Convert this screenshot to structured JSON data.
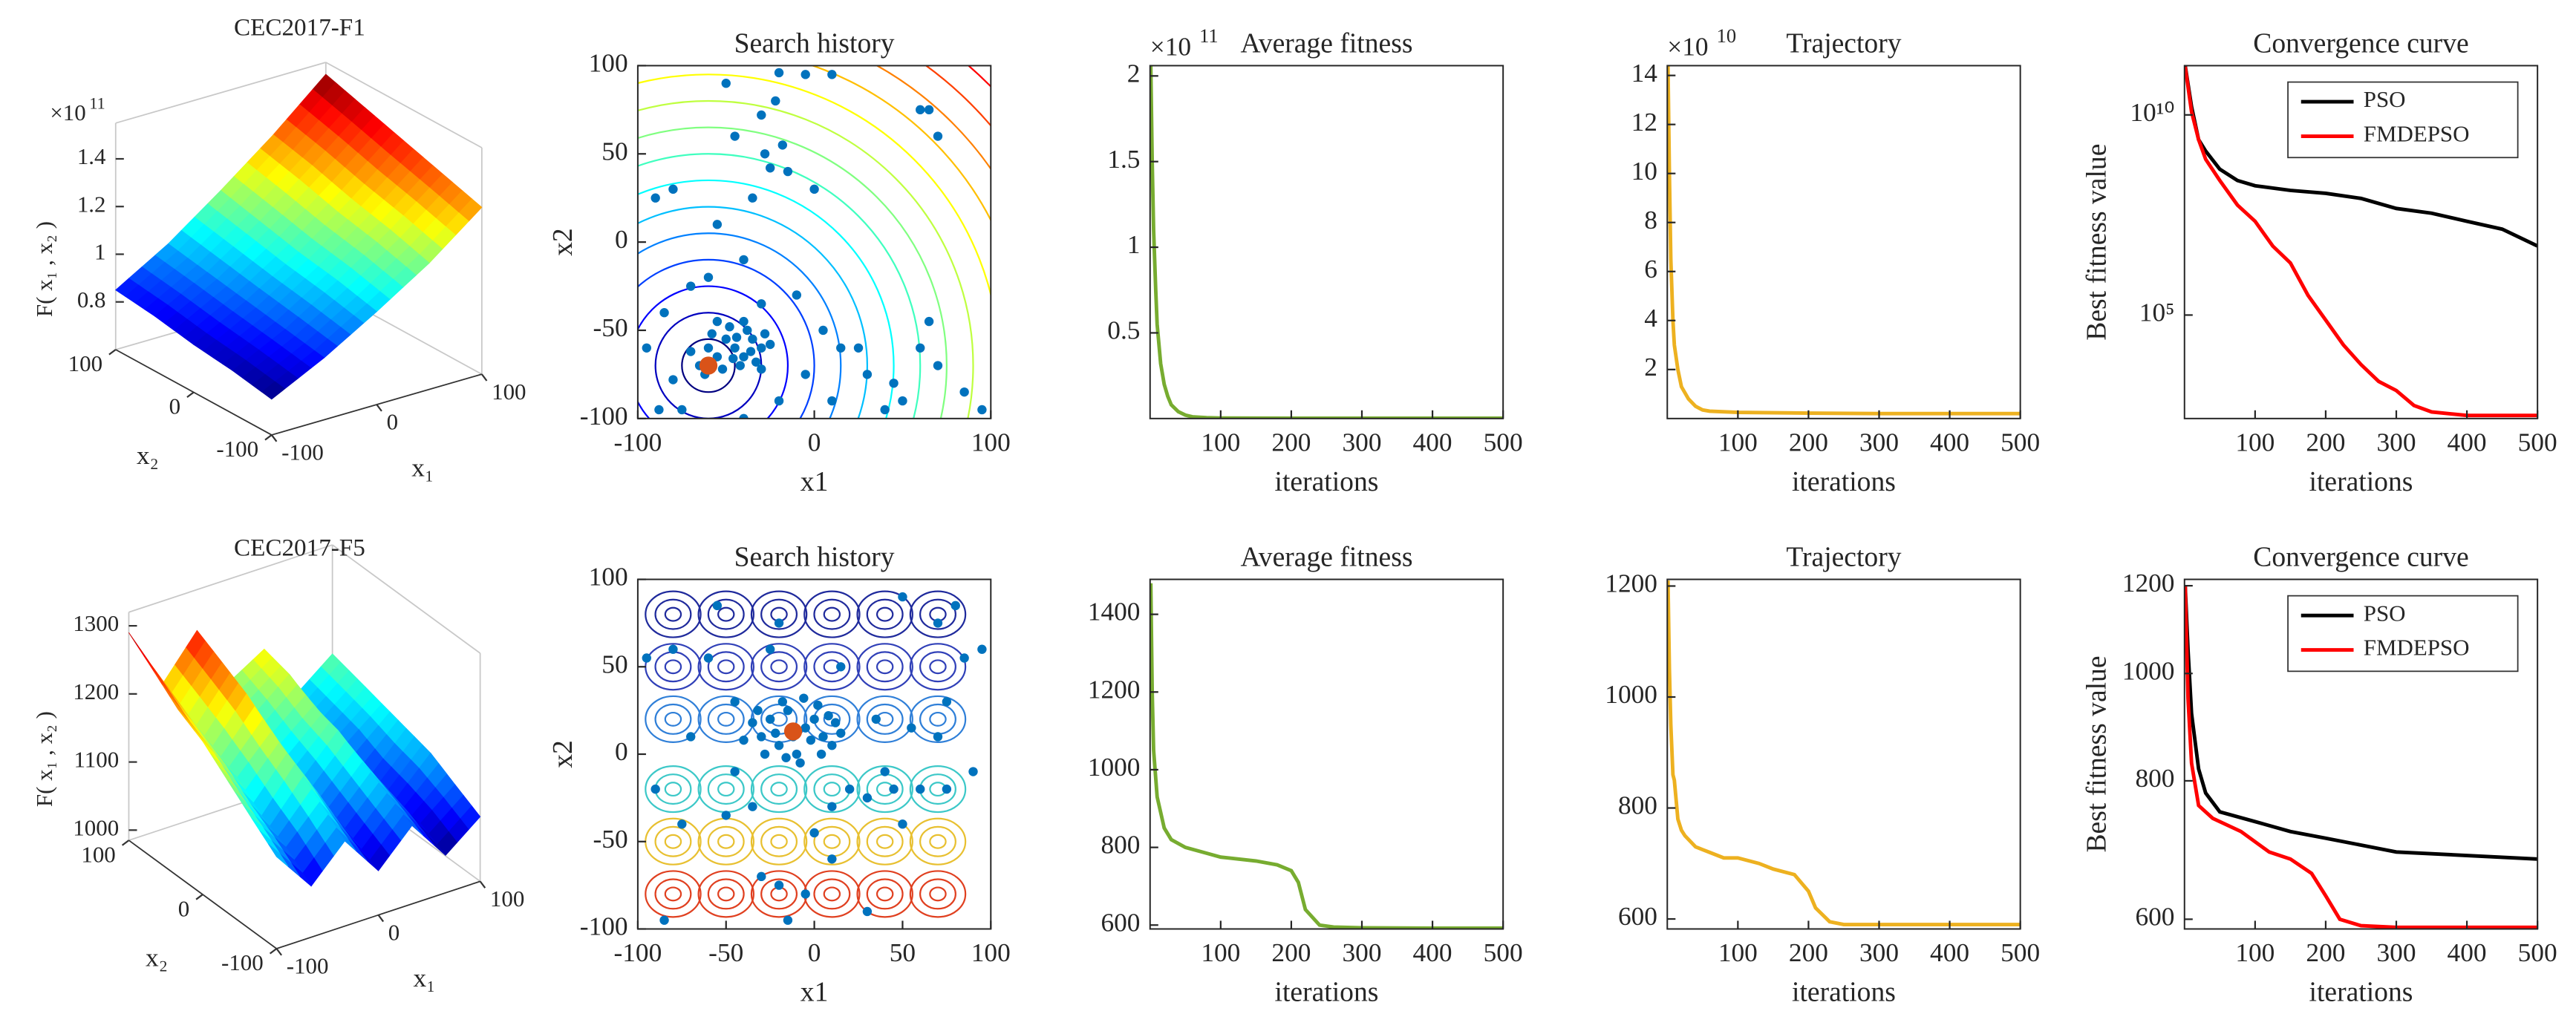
{
  "chart_data": [
    {
      "type": "surface3d",
      "title": "CEC2017-F1",
      "zlabel": "F( x₁ , x₂ )",
      "xlabel": "x₁",
      "ylabel": "x₂",
      "x": [
        -100,
        -50,
        0,
        50,
        100
      ],
      "y": [
        -100,
        -50,
        0,
        50,
        100
      ],
      "z": [
        [
          0.75,
          0.86,
          0.99,
          1.13,
          1.3
        ],
        [
          0.78,
          0.89,
          1.03,
          1.18,
          1.35
        ],
        [
          0.8,
          0.92,
          1.06,
          1.22,
          1.4
        ],
        [
          0.83,
          0.95,
          1.1,
          1.27,
          1.45
        ],
        [
          0.85,
          0.98,
          1.14,
          1.31,
          1.5
        ]
      ],
      "xticks": [
        -100,
        0,
        100
      ],
      "yticks": [
        -100,
        0,
        100
      ],
      "zlim": [
        0.6,
        1.55
      ],
      "zticks": [
        0.8,
        1,
        1.2,
        1.4
      ],
      "z_multiplier": "×10",
      "z_exponent": "11",
      "colormap": "jet"
    },
    {
      "type": "scatter",
      "title": "Search history",
      "xlabel": "x1",
      "ylabel": "x2",
      "x": [
        -20,
        -5,
        10,
        -22,
        -30,
        -18,
        -28,
        -25,
        -15,
        -35,
        0,
        -45,
        -50,
        60,
        70,
        65,
        -80,
        -90,
        -55,
        -40,
        -60,
        -70,
        -85,
        -30,
        -10,
        5,
        15,
        -75,
        -88,
        -20,
        -40,
        10,
        30,
        45,
        60,
        70,
        65,
        85,
        95,
        40,
        -95,
        -80,
        -5,
        25,
        50,
        -50,
        -45,
        -40,
        -35,
        -30,
        -38,
        -42,
        -55,
        -60,
        -48,
        -33,
        -28,
        -52,
        -36,
        -44,
        -58,
        -25,
        -46,
        -65,
        -70,
        -62,
        -40,
        -30,
        -55
      ],
      "values": [
        96,
        95,
        95,
        80,
        72,
        55,
        50,
        42,
        40,
        25,
        30,
        60,
        90,
        75,
        60,
        75,
        30,
        25,
        10,
        -10,
        -20,
        -25,
        -40,
        -35,
        -30,
        -50,
        -60,
        -95,
        -95,
        -90,
        -100,
        -90,
        -75,
        -80,
        -60,
        -70,
        -45,
        -85,
        -95,
        -95,
        -60,
        -78,
        -75,
        -60,
        -90,
        -55,
        -60,
        -65,
        -55,
        -60,
        -50,
        -70,
        -65,
        -60,
        -48,
        -68,
        -52,
        -72,
        -62,
        -54,
        -52,
        -58,
        -66,
        -70,
        -62,
        -75,
        -45,
        -72,
        -45
      ],
      "color": "#0072bd",
      "best": {
        "x": -60,
        "y": -70,
        "color": "#d95319"
      },
      "contours": {
        "center": [
          -60,
          -70
        ],
        "radii": [
          15,
          30,
          45,
          60,
          75,
          90,
          105,
          120,
          135,
          150,
          165,
          180,
          195,
          210,
          225,
          240,
          255
        ]
      },
      "xlim": [
        -100,
        100
      ],
      "ylim": [
        -100,
        100
      ],
      "xticks": [
        -100,
        0,
        100
      ],
      "yticks": [
        -100,
        -50,
        0,
        50,
        100
      ]
    },
    {
      "type": "line",
      "title": "Average fitness",
      "xlabel": "iterations",
      "x": [
        1,
        3,
        5,
        8,
        10,
        15,
        20,
        25,
        30,
        40,
        50,
        60,
        80,
        100,
        200,
        300,
        400,
        500
      ],
      "values": [
        2.06,
        1.5,
        1.1,
        0.75,
        0.55,
        0.32,
        0.2,
        0.13,
        0.08,
        0.04,
        0.02,
        0.01,
        0.005,
        0.003,
        0.002,
        0.002,
        0.002,
        0.002
      ],
      "color": "#77ac30",
      "xlim": [
        0,
        500
      ],
      "xticks": [
        100,
        200,
        300,
        400,
        500
      ],
      "ylim": [
        0,
        2.06
      ],
      "yticks": [
        0.5,
        1,
        1.5,
        2
      ],
      "y_multiplier": "×10",
      "y_exponent": "11"
    },
    {
      "type": "line",
      "title": "Trajectory",
      "xlabel": "iterations",
      "x": [
        1,
        3,
        5,
        8,
        10,
        15,
        20,
        30,
        40,
        50,
        60,
        100,
        200,
        300,
        400,
        500
      ],
      "values": [
        14.4,
        10,
        6.5,
        4,
        3,
        2,
        1.3,
        0.8,
        0.5,
        0.35,
        0.3,
        0.25,
        0.22,
        0.2,
        0.2,
        0.2
      ],
      "color": "#edb120",
      "xlim": [
        0,
        500
      ],
      "xticks": [
        100,
        200,
        300,
        400,
        500
      ],
      "ylim": [
        0,
        14.4
      ],
      "yticks": [
        2,
        4,
        6,
        8,
        10,
        12,
        14
      ],
      "y_multiplier": "×10",
      "y_exponent": "10"
    },
    {
      "type": "line",
      "title": "Convergence curve",
      "xlabel": "iterations",
      "ylabel": "Best fitness value",
      "yscale": "log",
      "legend": "upper right",
      "series": [
        {
          "name": "PSO",
          "color": "#000000",
          "x": [
            1,
            10,
            20,
            30,
            50,
            75,
            100,
            150,
            200,
            250,
            300,
            350,
            400,
            450,
            500
          ],
          "values": [
            170000000000,
            16000000000,
            2400000000,
            1250000000,
            440000000,
            230000000,
            170000000,
            130000000,
            110000000,
            82000000,
            46000000,
            35000000,
            22000000,
            14000000,
            5300000
          ]
        },
        {
          "name": "FMDEPSO",
          "color": "#ff0000",
          "x": [
            1,
            10,
            20,
            30,
            50,
            75,
            100,
            125,
            150,
            175,
            200,
            225,
            250,
            275,
            300,
            325,
            350,
            400,
            500
          ],
          "values": [
            160000000000,
            12000000000,
            2400000000,
            780000000,
            230000000,
            56000000,
            22000000,
            5300000,
            2000000,
            310000,
            75000,
            18000,
            5800,
            2200,
            1300,
            550,
            380,
            310,
            310
          ]
        }
      ],
      "xlim": [
        0,
        500
      ],
      "xticks": [
        100,
        200,
        300,
        400,
        500
      ],
      "ylim": [
        260,
        170000000000
      ],
      "yticks": [
        {
          "value": 100000,
          "label": "10⁵"
        },
        {
          "value": 10000000000,
          "label": "10¹⁰"
        }
      ]
    },
    {
      "type": "surface3d",
      "title": "CEC2017-F5",
      "zlabel": "F( x₁ , x₂ )",
      "xlabel": "x₁",
      "ylabel": "x₂",
      "x": [
        -100,
        -66,
        -33,
        0,
        33,
        66,
        100
      ],
      "y": [
        -100,
        -66,
        -33,
        0,
        33,
        66,
        100
      ],
      "z": [
        [
          1120,
          1060,
          1110,
          1050,
          1100,
          1040,
          1080
        ],
        [
          1150,
          1090,
          1140,
          1070,
          1120,
          1060,
          1100
        ],
        [
          1180,
          1110,
          1170,
          1090,
          1140,
          1070,
          1120
        ],
        [
          1210,
          1140,
          1190,
          1110,
          1160,
          1080,
          1130
        ],
        [
          1230,
          1160,
          1220,
          1130,
          1170,
          1100,
          1140
        ],
        [
          1260,
          1180,
          1240,
          1150,
          1190,
          1110,
          1150
        ],
        [
          1290,
          1200,
          1260,
          1170,
          1200,
          1120,
          1160
        ]
      ],
      "xticks": [
        -100,
        0,
        100
      ],
      "yticks": [
        -100,
        0,
        100
      ],
      "zlim": [
        985,
        1320
      ],
      "zticks": [
        1000,
        1100,
        1200,
        1300
      ],
      "colormap": "jet"
    },
    {
      "type": "scatter",
      "title": "Search history",
      "xlabel": "x1",
      "ylabel": "x2",
      "x": [
        -85,
        -80,
        -75,
        -60,
        -55,
        -50,
        -45,
        -30,
        -20,
        -15,
        -5,
        0,
        10,
        20,
        30,
        40,
        45,
        50,
        60,
        70,
        75,
        80,
        85,
        90,
        95,
        -90,
        -25,
        -20,
        15,
        50,
        70,
        -70,
        -45,
        35,
        55,
        75,
        -35,
        10,
        -95,
        30,
        -30,
        -25,
        -20,
        -15,
        -10,
        -5,
        0,
        5,
        10,
        -35,
        -28,
        -18,
        -8,
        2,
        12,
        -22,
        -12,
        -2,
        8,
        -40,
        15,
        -32,
        -16,
        -6,
        4
      ],
      "values": [
        -95,
        60,
        -40,
        55,
        85,
        -35,
        -10,
        -70,
        -75,
        -95,
        -80,
        -45,
        -30,
        -20,
        -25,
        -10,
        -20,
        -40,
        -20,
        75,
        -20,
        85,
        55,
        -10,
        60,
        -20,
        60,
        75,
        50,
        90,
        10,
        10,
        30,
        20,
        15,
        30,
        -30,
        -60,
        55,
        -90,
        10,
        20,
        5,
        25,
        0,
        15,
        20,
        10,
        5,
        18,
        0,
        30,
        -5,
        28,
        18,
        12,
        10,
        8,
        22,
        8,
        12,
        25,
        -2,
        32,
        0
      ],
      "color": "#0072bd",
      "best": {
        "x": -12,
        "y": 13,
        "color": "#d95319"
      },
      "contours": {
        "x": [
          -80,
          -50,
          -20,
          10,
          40,
          70
        ],
        "rows": [
          {
            "y": 80,
            "color": "#1f2a9c"
          },
          {
            "y": 50,
            "color": "#3040b8"
          },
          {
            "y": 20,
            "color": "#2f7fd8"
          },
          {
            "y": -20,
            "color": "#3cc8c8"
          },
          {
            "y": -50,
            "color": "#e8c030"
          },
          {
            "y": -80,
            "color": "#e04020"
          }
        ]
      },
      "xlim": [
        -100,
        100
      ],
      "ylim": [
        -100,
        100
      ],
      "xticks": [
        -100,
        -50,
        0,
        50,
        100
      ],
      "yticks": [
        -100,
        -50,
        0,
        50,
        100
      ]
    },
    {
      "type": "line",
      "title": "Average fitness",
      "xlabel": "iterations",
      "x": [
        1,
        3,
        5,
        10,
        20,
        30,
        50,
        80,
        100,
        150,
        180,
        200,
        210,
        220,
        240,
        260,
        300,
        400,
        500
      ],
      "values": [
        1480,
        1200,
        1050,
        930,
        850,
        820,
        800,
        785,
        775,
        765,
        755,
        740,
        710,
        640,
        600,
        595,
        593,
        592,
        592
      ],
      "color": "#77ac30",
      "xlim": [
        0,
        500
      ],
      "xticks": [
        100,
        200,
        300,
        400,
        500
      ],
      "ylim": [
        590,
        1490
      ],
      "yticks": [
        600,
        800,
        1000,
        1200,
        1400
      ]
    },
    {
      "type": "line",
      "title": "Trajectory",
      "xlabel": "iterations",
      "x": [
        1,
        3,
        5,
        8,
        10,
        15,
        20,
        25,
        40,
        50,
        60,
        80,
        100,
        130,
        150,
        180,
        200,
        210,
        230,
        250,
        300,
        500
      ],
      "values": [
        1210,
        1050,
        950,
        860,
        850,
        780,
        760,
        750,
        730,
        725,
        720,
        710,
        710,
        700,
        690,
        680,
        650,
        620,
        595,
        590,
        590,
        590
      ],
      "color": "#edb120",
      "xlim": [
        0,
        500
      ],
      "xticks": [
        100,
        200,
        300,
        400,
        500
      ],
      "ylim": [
        582,
        1212
      ],
      "yticks": [
        600,
        800,
        1000,
        1200
      ]
    },
    {
      "type": "line",
      "title": "Convergence curve",
      "xlabel": "iterations",
      "ylabel": "Best fitness value",
      "yscale": "log",
      "legend": "upper right",
      "series": [
        {
          "name": "PSO",
          "color": "#000000",
          "x": [
            1,
            5,
            10,
            20,
            30,
            50,
            100,
            150,
            200,
            250,
            300,
            400,
            500
          ],
          "values": [
            1200,
            1050,
            920,
            820,
            780,
            750,
            735,
            720,
            710,
            700,
            690,
            685,
            680
          ]
        },
        {
          "name": "FMDEPSO",
          "color": "#ff0000",
          "x": [
            1,
            5,
            10,
            20,
            40,
            80,
            120,
            150,
            180,
            200,
            220,
            250,
            300,
            500
          ],
          "values": [
            1200,
            950,
            830,
            760,
            740,
            720,
            690,
            680,
            660,
            630,
            600,
            592,
            590,
            590
          ]
        }
      ],
      "xlim": [
        0,
        500
      ],
      "xticks": [
        100,
        200,
        300,
        400,
        500
      ],
      "ylim": [
        588,
        1216
      ],
      "yticks": [
        600,
        800,
        1000,
        1200
      ]
    }
  ]
}
